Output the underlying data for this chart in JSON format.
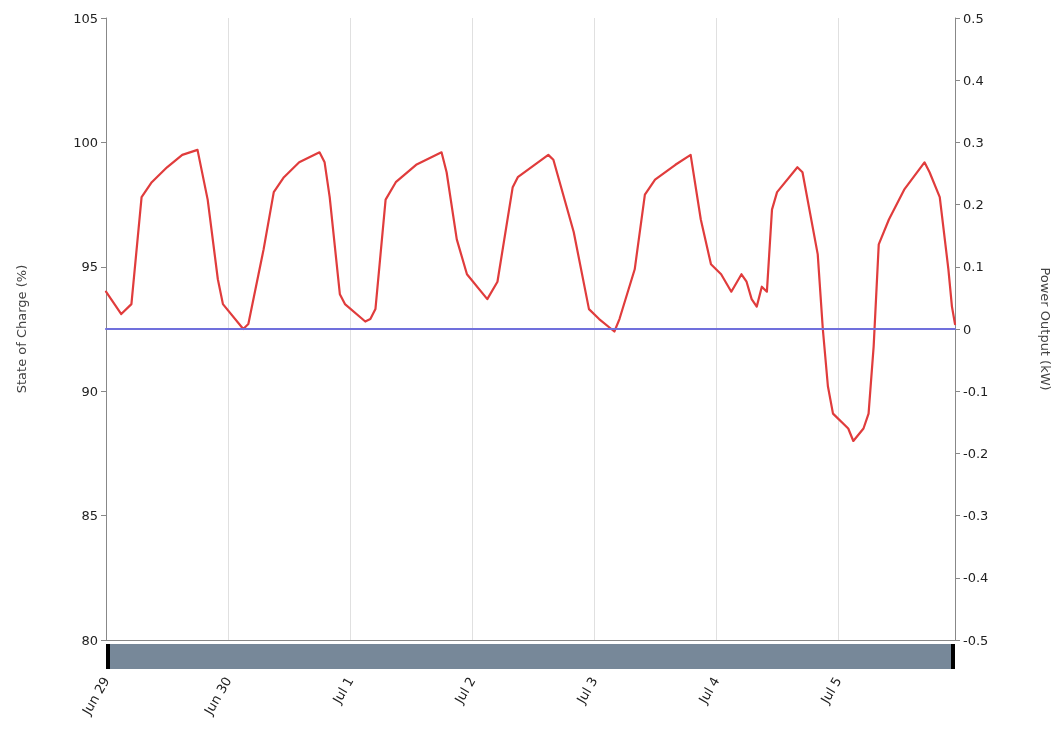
{
  "chart_data": {
    "type": "line",
    "ylabel": "State of Charge (%)",
    "y2label": "Power Output (kW)",
    "xlim": [
      "--06-29T00:00",
      "--07-05T23:00"
    ],
    "xticks": [
      {
        "value": "--06-29",
        "label": "Jun 29"
      },
      {
        "value": "--06-30",
        "label": "Jun 30"
      },
      {
        "value": "--07-01",
        "label": "Jul 1"
      },
      {
        "value": "--07-02",
        "label": "Jul 2"
      },
      {
        "value": "--07-03",
        "label": "Jul 3"
      },
      {
        "value": "--07-04",
        "label": "Jul 4"
      },
      {
        "value": "--07-05",
        "label": "Jul 5"
      }
    ],
    "ylim": [
      80,
      105
    ],
    "yticks": [
      80,
      85,
      90,
      95,
      100,
      105
    ],
    "y2lim": [
      -0.5,
      0.5
    ],
    "y2ticks": [
      -0.5,
      -0.4,
      -0.3,
      -0.2,
      -0.1,
      0,
      0.1,
      0.2,
      0.3,
      0.4,
      0.5
    ],
    "grid": "x",
    "marker": "none",
    "line_style": "solid",
    "series": [
      {
        "color": "#e03c3c",
        "x": [
          "--06-29T00:00",
          "--06-29T03:00",
          "--06-29T05:00",
          "--06-29T07:00",
          "--06-29T09:00",
          "--06-29T12:00",
          "--06-29T15:00",
          "--06-29T18:00",
          "--06-29T20:00",
          "--06-29T22:00",
          "--06-29T23:00",
          "--06-30T03:00",
          "--06-30T04:00",
          "--06-30T06:00",
          "--06-30T07:00",
          "--06-30T09:00",
          "--06-30T11:00",
          "--06-30T14:00",
          "--06-30T18:00",
          "--06-30T19:00",
          "--06-30T20:00",
          "--06-30T22:00",
          "--06-30T23:00",
          "--07-01T03:00",
          "--07-01T04:00",
          "--07-01T05:00",
          "--07-01T07:00",
          "--07-01T09:00",
          "--07-01T13:00",
          "--07-01T18:00",
          "--07-01T19:00",
          "--07-01T21:00",
          "--07-01T23:00",
          "--07-02T03:00",
          "--07-02T05:00",
          "--07-02T08:00",
          "--07-02T09:00",
          "--07-02T15:00",
          "--07-02T16:00",
          "--07-02T20:00",
          "--07-02T23:00",
          "--07-03T01:00",
          "--07-03T04:00",
          "--07-03T05:00",
          "--07-03T08:00",
          "--07-03T10:00",
          "--07-03T12:00",
          "--07-03T16:00",
          "--07-03T19:00",
          "--07-03T21:00",
          "--07-03T23:00",
          "--07-04T01:00",
          "--07-04T03:00",
          "--07-04T05:00",
          "--07-04T06:00",
          "--07-04T07:00",
          "--07-04T08:00",
          "--07-04T09:00",
          "--07-04T10:00",
          "--07-04T11:00",
          "--07-04T12:00",
          "--07-04T16:00",
          "--07-04T17:00",
          "--07-04T20:00",
          "--07-04T21:00",
          "--07-04T22:00",
          "--07-04T23:00",
          "--07-05T02:00",
          "--07-05T03:00",
          "--07-05T05:00",
          "--07-05T06:00",
          "--07-05T07:00",
          "--07-05T08:00",
          "--07-05T10:00",
          "--07-05T13:00",
          "--07-05T17:00",
          "--07-05T18:00",
          "--07-05T20:00",
          "--07-05T21:42",
          "--07-05T22:24",
          "--07-05T23:00"
        ],
        "values": [
          94.0,
          93.1,
          93.5,
          97.8,
          98.4,
          99.0,
          99.5,
          99.7,
          97.7,
          94.5,
          93.5,
          92.5,
          92.7,
          94.7,
          95.7,
          98.0,
          98.6,
          99.2,
          99.6,
          99.2,
          97.8,
          93.9,
          93.5,
          92.8,
          92.9,
          93.3,
          97.7,
          98.4,
          99.1,
          99.6,
          98.8,
          96.1,
          94.7,
          93.7,
          94.4,
          98.2,
          98.6,
          99.5,
          99.3,
          96.4,
          93.3,
          92.9,
          92.4,
          92.9,
          94.9,
          97.9,
          98.5,
          99.1,
          99.5,
          96.9,
          95.1,
          94.7,
          94.0,
          94.7,
          94.4,
          93.7,
          93.4,
          94.2,
          94.0,
          97.3,
          98.0,
          99.0,
          98.8,
          95.5,
          92.5,
          90.2,
          89.1,
          88.5,
          88.0,
          88.5,
          89.1,
          91.8,
          95.9,
          96.9,
          98.1,
          99.2,
          98.8,
          97.8,
          94.9,
          93.4,
          92.7
        ]
      },
      {
        "color": "#7070dc",
        "axis": "y2",
        "x": [
          "--06-29T00:00",
          "--07-05T23:00"
        ],
        "values": [
          0,
          0
        ]
      }
    ]
  }
}
